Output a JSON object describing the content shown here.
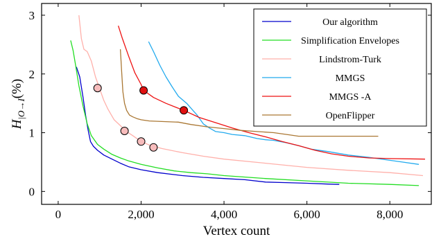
{
  "chart_data": {
    "type": "line",
    "xlabel": "Vertex count",
    "ylabel": {
      "main": "H",
      "subscript": "|O→I",
      "suffix": "(%)"
    },
    "xlim": [
      -400,
      9000
    ],
    "ylim": [
      -0.22,
      3.2
    ],
    "xticks": [
      {
        "value": 0,
        "label": "0"
      },
      {
        "value": 2000,
        "label": "2,000"
      },
      {
        "value": 4000,
        "label": "4,000"
      },
      {
        "value": 6000,
        "label": "6,000"
      },
      {
        "value": 8000,
        "label": "8,000"
      }
    ],
    "yticks": [
      {
        "value": 0,
        "label": "0"
      },
      {
        "value": 1,
        "label": "1"
      },
      {
        "value": 2,
        "label": "2"
      },
      {
        "value": 3,
        "label": "3"
      }
    ],
    "grid": false,
    "legend_position": "top-right",
    "series": [
      {
        "name": "Our algorithm",
        "color": "#0000cc",
        "points": [
          [
            440,
            2.12
          ],
          [
            520,
            1.95
          ],
          [
            600,
            1.6
          ],
          [
            660,
            1.3
          ],
          [
            720,
            1.05
          ],
          [
            780,
            0.85
          ],
          [
            850,
            0.77
          ],
          [
            950,
            0.7
          ],
          [
            1100,
            0.62
          ],
          [
            1300,
            0.55
          ],
          [
            1500,
            0.48
          ],
          [
            1700,
            0.42
          ],
          [
            2000,
            0.37
          ],
          [
            2400,
            0.32
          ],
          [
            3000,
            0.27
          ],
          [
            3500,
            0.24
          ],
          [
            4000,
            0.22
          ],
          [
            4500,
            0.2
          ],
          [
            5000,
            0.16
          ],
          [
            5500,
            0.15
          ],
          [
            6000,
            0.14
          ],
          [
            6500,
            0.125
          ],
          [
            6780,
            0.12
          ]
        ]
      },
      {
        "name": "Simplification Envelopes",
        "color": "#22dd22",
        "points": [
          [
            300,
            2.57
          ],
          [
            360,
            2.4
          ],
          [
            420,
            2.15
          ],
          [
            500,
            1.8
          ],
          [
            600,
            1.45
          ],
          [
            700,
            1.15
          ],
          [
            800,
            0.95
          ],
          [
            950,
            0.8
          ],
          [
            1100,
            0.72
          ],
          [
            1300,
            0.63
          ],
          [
            1500,
            0.57
          ],
          [
            1700,
            0.52
          ],
          [
            2000,
            0.46
          ],
          [
            2400,
            0.4
          ],
          [
            2800,
            0.35
          ],
          [
            3200,
            0.32
          ],
          [
            3600,
            0.3
          ],
          [
            4000,
            0.27
          ],
          [
            5000,
            0.22
          ],
          [
            6000,
            0.18
          ],
          [
            7000,
            0.14
          ],
          [
            8000,
            0.12
          ],
          [
            8700,
            0.1
          ]
        ]
      },
      {
        "name": "Lindstrom-Turk",
        "color": "#ffb0aa",
        "points": [
          [
            500,
            3.0
          ],
          [
            560,
            2.6
          ],
          [
            620,
            2.42
          ],
          [
            700,
            2.38
          ],
          [
            800,
            2.22
          ],
          [
            900,
            1.95
          ],
          [
            1000,
            1.75
          ],
          [
            1100,
            1.55
          ],
          [
            1200,
            1.4
          ],
          [
            1350,
            1.22
          ],
          [
            1500,
            1.12
          ],
          [
            1650,
            1.02
          ],
          [
            1800,
            0.95
          ],
          [
            2000,
            0.85
          ],
          [
            2200,
            0.79
          ],
          [
            2500,
            0.73
          ],
          [
            3000,
            0.66
          ],
          [
            3500,
            0.6
          ],
          [
            4000,
            0.55
          ],
          [
            5000,
            0.48
          ],
          [
            6000,
            0.41
          ],
          [
            7000,
            0.36
          ],
          [
            8000,
            0.32
          ],
          [
            8800,
            0.27
          ]
        ]
      },
      {
        "name": "MMGS",
        "color": "#22aaee",
        "points": [
          [
            2180,
            2.55
          ],
          [
            2300,
            2.38
          ],
          [
            2450,
            2.15
          ],
          [
            2600,
            1.95
          ],
          [
            2750,
            1.78
          ],
          [
            2900,
            1.62
          ],
          [
            3000,
            1.56
          ],
          [
            3100,
            1.5
          ],
          [
            3200,
            1.42
          ],
          [
            3350,
            1.3
          ],
          [
            3500,
            1.15
          ],
          [
            3650,
            1.08
          ],
          [
            3800,
            1.02
          ],
          [
            4000,
            1.0
          ],
          [
            4200,
            0.97
          ],
          [
            4500,
            0.95
          ],
          [
            4800,
            0.9
          ],
          [
            5000,
            0.88
          ],
          [
            5200,
            0.87
          ],
          [
            5500,
            0.83
          ],
          [
            5800,
            0.78
          ],
          [
            6100,
            0.72
          ],
          [
            6500,
            0.68
          ],
          [
            7000,
            0.62
          ],
          [
            7500,
            0.58
          ],
          [
            8000,
            0.53
          ],
          [
            8300,
            0.5
          ],
          [
            8700,
            0.46
          ]
        ]
      },
      {
        "name": "MMGS -A",
        "color": "#ee1111",
        "points": [
          [
            1450,
            2.82
          ],
          [
            1550,
            2.6
          ],
          [
            1700,
            2.3
          ],
          [
            1850,
            2.02
          ],
          [
            2000,
            1.82
          ],
          [
            2060,
            1.72
          ],
          [
            2300,
            1.6
          ],
          [
            2600,
            1.5
          ],
          [
            2850,
            1.43
          ],
          [
            3030,
            1.38
          ],
          [
            3400,
            1.26
          ],
          [
            3800,
            1.17
          ],
          [
            4200,
            1.08
          ],
          [
            4600,
            1.0
          ],
          [
            5000,
            0.93
          ],
          [
            5400,
            0.85
          ],
          [
            5800,
            0.78
          ],
          [
            6200,
            0.7
          ],
          [
            6600,
            0.64
          ],
          [
            7000,
            0.6
          ],
          [
            7500,
            0.57
          ],
          [
            8000,
            0.56
          ],
          [
            8850,
            0.55
          ]
        ]
      },
      {
        "name": "OpenFlipper",
        "color": "#aa7733",
        "points": [
          [
            1500,
            2.42
          ],
          [
            1530,
            2.05
          ],
          [
            1560,
            1.7
          ],
          [
            1600,
            1.5
          ],
          [
            1650,
            1.38
          ],
          [
            1720,
            1.3
          ],
          [
            1800,
            1.27
          ],
          [
            1900,
            1.24
          ],
          [
            2000,
            1.22
          ],
          [
            2200,
            1.2
          ],
          [
            2500,
            1.19
          ],
          [
            2900,
            1.18
          ],
          [
            3200,
            1.14
          ],
          [
            3600,
            1.1
          ],
          [
            4000,
            1.07
          ],
          [
            4400,
            1.04
          ],
          [
            4800,
            1.02
          ],
          [
            5200,
            1.0
          ],
          [
            5600,
            0.96
          ],
          [
            5800,
            0.94
          ],
          [
            6200,
            0.94
          ],
          [
            7000,
            0.94
          ],
          [
            7720,
            0.94
          ]
        ]
      }
    ],
    "highlights": [
      {
        "series": "Lindstrom-Turk",
        "color": "#f7bcbc",
        "points": [
          [
            950,
            1.76
          ],
          [
            1600,
            1.03
          ],
          [
            2000,
            0.85
          ],
          [
            2300,
            0.75
          ]
        ]
      },
      {
        "series": "MMGS -A",
        "color": "#e01010",
        "points": [
          [
            2060,
            1.72
          ],
          [
            3030,
            1.38
          ]
        ]
      }
    ]
  }
}
